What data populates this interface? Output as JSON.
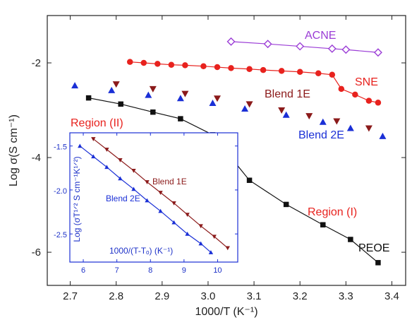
{
  "chart_data": [
    {
      "type": "scatter",
      "xlabel": "1000/T (K⁻¹)",
      "ylabel": "Log σ(S cm⁻¹)",
      "xlim": [
        2.65,
        3.43
      ],
      "ylim": [
        -6.7,
        -1.0
      ],
      "xticks": [
        "2.7",
        "2.8",
        "2.9",
        "3.0",
        "3.1",
        "3.2",
        "3.3",
        "3.4"
      ],
      "yticks": [
        "-2",
        "-4",
        "-6"
      ],
      "series": [
        {
          "name": "ACNE",
          "color": "#9b3dd6",
          "marker": "diamond-open",
          "line": true,
          "x": [
            3.05,
            3.13,
            3.2,
            3.27,
            3.3,
            3.37
          ],
          "y": [
            -1.55,
            -1.6,
            -1.65,
            -1.7,
            -1.72,
            -1.78
          ]
        },
        {
          "name": "SNE",
          "color": "#e8221e",
          "marker": "circle",
          "line": true,
          "x": [
            2.83,
            2.86,
            2.89,
            2.92,
            2.95,
            2.99,
            3.02,
            3.05,
            3.09,
            3.12,
            3.16,
            3.2,
            3.24,
            3.27,
            3.29,
            3.32,
            3.35,
            3.37
          ],
          "y": [
            -1.98,
            -2.0,
            -2.02,
            -2.04,
            -2.05,
            -2.07,
            -2.09,
            -2.11,
            -2.13,
            -2.15,
            -2.17,
            -2.19,
            -2.22,
            -2.25,
            -2.55,
            -2.67,
            -2.8,
            -2.84
          ]
        },
        {
          "name": "Blend 1E",
          "color": "#8b1a1a",
          "marker": "triangle-down",
          "line": false,
          "x": [
            2.8,
            2.88,
            2.95,
            3.02,
            3.09,
            3.16,
            3.22,
            3.28,
            3.35
          ],
          "y": [
            -2.45,
            -2.55,
            -2.65,
            -2.75,
            -2.87,
            -3.0,
            -3.12,
            -3.23,
            -3.38
          ]
        },
        {
          "name": "Blend 2E",
          "color": "#1a2fd6",
          "marker": "triangle-up",
          "line": false,
          "x": [
            2.71,
            2.79,
            2.87,
            2.94,
            3.01,
            3.08,
            3.17,
            3.25,
            3.31,
            3.38
          ],
          "y": [
            -2.48,
            -2.58,
            -2.68,
            -2.75,
            -2.85,
            -2.97,
            -3.1,
            -3.25,
            -3.38,
            -3.55
          ]
        },
        {
          "name": "PEOE",
          "color": "#111111",
          "marker": "square",
          "line": true,
          "x": [
            2.74,
            2.81,
            2.88,
            2.94,
            3.01,
            3.09,
            3.17,
            3.25,
            3.31,
            3.37
          ],
          "y": [
            -2.74,
            -2.87,
            -3.04,
            -3.18,
            -3.52,
            -4.48,
            -4.99,
            -5.42,
            -5.73,
            -6.22
          ]
        }
      ],
      "annotations": [
        {
          "text": "ACNE",
          "color": "#9b3dd6"
        },
        {
          "text": "SNE",
          "color": "#e8221e"
        },
        {
          "text": "Blend 1E",
          "color": "#8b1a1a"
        },
        {
          "text": "Blend 2E",
          "color": "#1a2fd6"
        },
        {
          "text": "Region (II)",
          "color": "#e8221e"
        },
        {
          "text": "Region (I)",
          "color": "#e8221e"
        },
        {
          "text": "PEOE",
          "color": "#111111"
        }
      ]
    },
    {
      "type": "line",
      "xlabel": "1000/(T-Tₒ) (K⁻¹)",
      "ylabel": "Log (σT¹ᐟ² S cm⁻¹K¹ᐟ²)",
      "xlim": [
        5.6,
        10.6
      ],
      "ylim": [
        -2.82,
        -1.35
      ],
      "xticks": [
        "6",
        "7",
        "8",
        "9",
        "10"
      ],
      "yticks": [
        "-1.5",
        "-2.0",
        "-2.5"
      ],
      "series": [
        {
          "name": "Blend 1E",
          "color": "#8b1a1a",
          "marker": "triangle-down",
          "x": [
            6.3,
            6.7,
            7.1,
            7.5,
            7.9,
            8.3,
            8.7,
            9.1,
            9.5,
            9.9,
            10.3
          ],
          "y": [
            -1.42,
            -1.54,
            -1.66,
            -1.78,
            -1.91,
            -2.03,
            -2.15,
            -2.28,
            -2.41,
            -2.53,
            -2.66
          ]
        },
        {
          "name": "Blend 2E",
          "color": "#1a2fd6",
          "marker": "triangle-up",
          "x": [
            5.9,
            6.3,
            6.7,
            7.1,
            7.5,
            7.9,
            8.3,
            8.7,
            9.1,
            9.5,
            9.8
          ],
          "y": [
            -1.5,
            -1.62,
            -1.74,
            -1.87,
            -1.99,
            -2.12,
            -2.24,
            -2.37,
            -2.5,
            -2.61,
            -2.71
          ]
        }
      ],
      "annotations": [
        {
          "text": "Blend 1E",
          "color": "#8b1a1a"
        },
        {
          "text": "Blend 2E",
          "color": "#1a2fd6"
        }
      ]
    }
  ]
}
